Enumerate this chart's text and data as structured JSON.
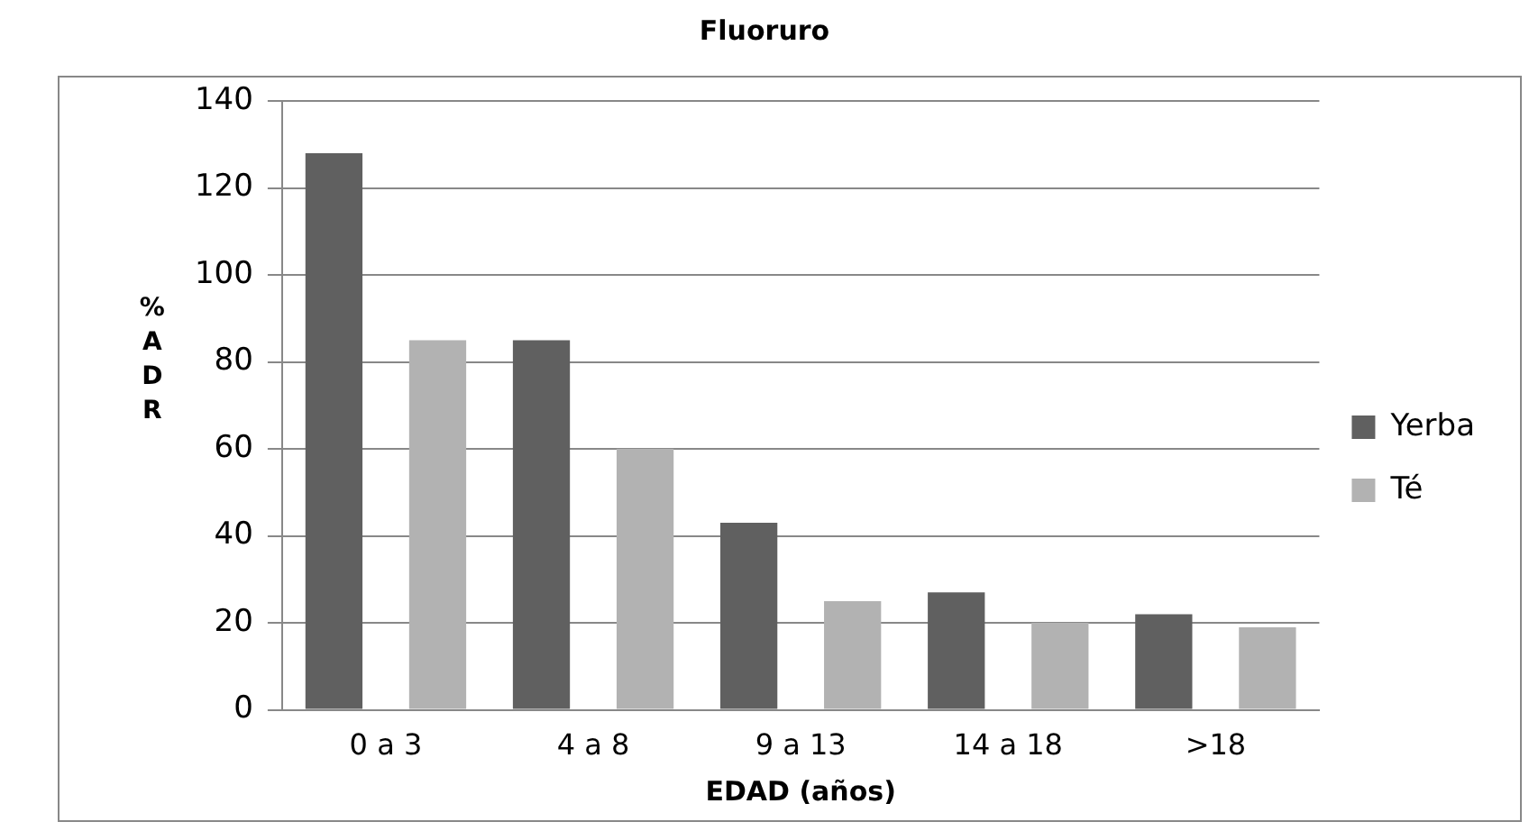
{
  "chart_data": {
    "type": "bar",
    "title": "Fluoruro",
    "xlabel": "EDAD (años)",
    "ylabel": "% ADR",
    "categories": [
      "0 a 3",
      "4 a 8",
      "9 a 13",
      "14 a 18",
      ">18"
    ],
    "series": [
      {
        "name": "Yerba",
        "color": "#606060",
        "values": [
          128,
          85,
          43,
          27,
          22
        ]
      },
      {
        "name": "Té",
        "color": "#b2b2b2",
        "values": [
          85,
          60,
          25,
          20,
          19
        ]
      }
    ],
    "ylim": [
      0,
      140
    ],
    "yticks": [
      0,
      20,
      40,
      60,
      80,
      100,
      120,
      140
    ],
    "grid": "y",
    "legend": "right"
  }
}
